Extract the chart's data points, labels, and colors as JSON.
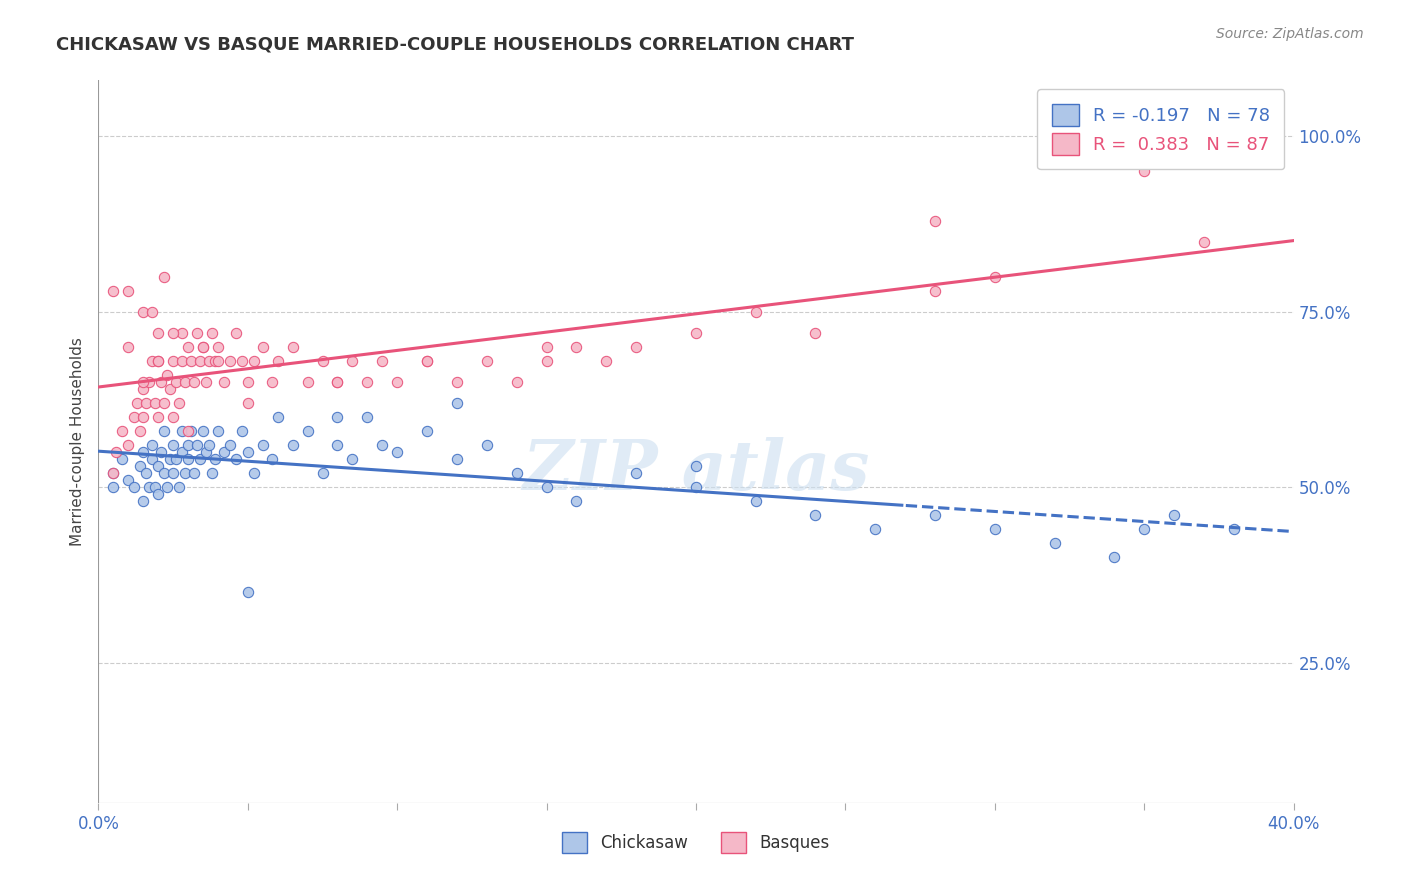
{
  "title": "CHICKASAW VS BASQUE MARRIED-COUPLE HOUSEHOLDS CORRELATION CHART",
  "source": "Source: ZipAtlas.com",
  "xmin": 0.0,
  "xmax": 0.4,
  "ymin": 0.05,
  "ymax": 1.08,
  "chickasaw_color": "#aec6e8",
  "basque_color": "#f5b8c8",
  "chickasaw_line_color": "#4472c4",
  "basque_line_color": "#e8537a",
  "R_chickasaw": -0.197,
  "N_chickasaw": 78,
  "R_basque": 0.383,
  "N_basque": 87,
  "yticks": [
    0.25,
    0.5,
    0.75,
    1.0
  ],
  "ytick_labels": [
    "25.0%",
    "50.0%",
    "75.0%",
    "100.0%"
  ],
  "chickasaw_x": [
    0.005,
    0.005,
    0.008,
    0.01,
    0.012,
    0.014,
    0.015,
    0.015,
    0.016,
    0.017,
    0.018,
    0.018,
    0.019,
    0.02,
    0.02,
    0.021,
    0.022,
    0.022,
    0.023,
    0.024,
    0.025,
    0.025,
    0.026,
    0.027,
    0.028,
    0.028,
    0.029,
    0.03,
    0.03,
    0.031,
    0.032,
    0.033,
    0.034,
    0.035,
    0.036,
    0.037,
    0.038,
    0.039,
    0.04,
    0.042,
    0.044,
    0.046,
    0.048,
    0.05,
    0.052,
    0.055,
    0.058,
    0.06,
    0.065,
    0.07,
    0.075,
    0.08,
    0.085,
    0.09,
    0.095,
    0.1,
    0.11,
    0.12,
    0.13,
    0.14,
    0.15,
    0.16,
    0.18,
    0.2,
    0.22,
    0.24,
    0.26,
    0.28,
    0.3,
    0.32,
    0.34,
    0.36,
    0.38,
    0.05,
    0.08,
    0.12,
    0.2,
    0.35
  ],
  "chickasaw_y": [
    0.52,
    0.5,
    0.54,
    0.51,
    0.5,
    0.53,
    0.55,
    0.48,
    0.52,
    0.5,
    0.54,
    0.56,
    0.5,
    0.53,
    0.49,
    0.55,
    0.52,
    0.58,
    0.5,
    0.54,
    0.56,
    0.52,
    0.54,
    0.5,
    0.58,
    0.55,
    0.52,
    0.56,
    0.54,
    0.58,
    0.52,
    0.56,
    0.54,
    0.58,
    0.55,
    0.56,
    0.52,
    0.54,
    0.58,
    0.55,
    0.56,
    0.54,
    0.58,
    0.55,
    0.52,
    0.56,
    0.54,
    0.6,
    0.56,
    0.58,
    0.52,
    0.56,
    0.54,
    0.6,
    0.56,
    0.55,
    0.58,
    0.54,
    0.56,
    0.52,
    0.5,
    0.48,
    0.52,
    0.5,
    0.48,
    0.46,
    0.44,
    0.46,
    0.44,
    0.42,
    0.4,
    0.46,
    0.44,
    0.35,
    0.6,
    0.62,
    0.53,
    0.44
  ],
  "basque_x": [
    0.005,
    0.006,
    0.008,
    0.01,
    0.012,
    0.013,
    0.014,
    0.015,
    0.015,
    0.016,
    0.017,
    0.018,
    0.019,
    0.02,
    0.02,
    0.021,
    0.022,
    0.023,
    0.024,
    0.025,
    0.026,
    0.027,
    0.028,
    0.028,
    0.029,
    0.03,
    0.031,
    0.032,
    0.033,
    0.034,
    0.035,
    0.036,
    0.037,
    0.038,
    0.039,
    0.04,
    0.042,
    0.044,
    0.046,
    0.048,
    0.05,
    0.052,
    0.055,
    0.058,
    0.06,
    0.065,
    0.07,
    0.075,
    0.08,
    0.085,
    0.09,
    0.095,
    0.1,
    0.11,
    0.12,
    0.13,
    0.14,
    0.15,
    0.16,
    0.17,
    0.18,
    0.2,
    0.22,
    0.24,
    0.28,
    0.3,
    0.03,
    0.025,
    0.015,
    0.02,
    0.01,
    0.015,
    0.025,
    0.035,
    0.04,
    0.02,
    0.01,
    0.018,
    0.022,
    0.005,
    0.05,
    0.08,
    0.11,
    0.15,
    0.28,
    0.35,
    0.37
  ],
  "basque_y": [
    0.52,
    0.55,
    0.58,
    0.56,
    0.6,
    0.62,
    0.58,
    0.64,
    0.6,
    0.62,
    0.65,
    0.68,
    0.62,
    0.6,
    0.68,
    0.65,
    0.62,
    0.66,
    0.64,
    0.68,
    0.65,
    0.62,
    0.68,
    0.72,
    0.65,
    0.7,
    0.68,
    0.65,
    0.72,
    0.68,
    0.7,
    0.65,
    0.68,
    0.72,
    0.68,
    0.7,
    0.65,
    0.68,
    0.72,
    0.68,
    0.65,
    0.68,
    0.7,
    0.65,
    0.68,
    0.7,
    0.65,
    0.68,
    0.65,
    0.68,
    0.65,
    0.68,
    0.65,
    0.68,
    0.65,
    0.68,
    0.65,
    0.68,
    0.7,
    0.68,
    0.7,
    0.72,
    0.75,
    0.72,
    0.78,
    0.8,
    0.58,
    0.6,
    0.65,
    0.68,
    0.7,
    0.75,
    0.72,
    0.7,
    0.68,
    0.72,
    0.78,
    0.75,
    0.8,
    0.78,
    0.62,
    0.65,
    0.68,
    0.7,
    0.88,
    0.95,
    0.85
  ]
}
